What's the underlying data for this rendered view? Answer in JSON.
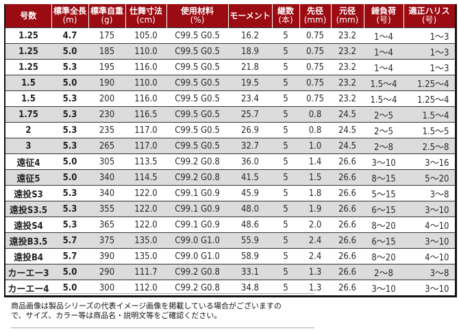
{
  "table": {
    "headers": [
      {
        "label": "号数",
        "sub": ""
      },
      {
        "label": "標準全長",
        "sub": "(m)"
      },
      {
        "label": "標準自重",
        "sub": "(g)"
      },
      {
        "label": "仕舞寸法",
        "sub": "(cm)"
      },
      {
        "label": "使用材料",
        "sub": "(%)"
      },
      {
        "label": "モーメント",
        "sub": ""
      },
      {
        "label": "継数",
        "sub": "(本)"
      },
      {
        "label": "先径",
        "sub": "(mm)"
      },
      {
        "label": "元径",
        "sub": "(mm)"
      },
      {
        "label": "錘負荷",
        "sub": "(号)"
      },
      {
        "label": "適正ハリス",
        "sub": "(号)"
      }
    ],
    "rows": [
      [
        "1.25",
        "4.7",
        "175",
        "105.0",
        "C99.5 G0.5",
        "16.2",
        "5",
        "0.75",
        "23.2",
        "1〜4",
        "1〜3"
      ],
      [
        "1.25",
        "5.0",
        "185",
        "110.0",
        "C99.5 G0.5",
        "18.9",
        "5",
        "0.75",
        "23.2",
        "1〜4",
        "1〜3"
      ],
      [
        "1.25",
        "5.3",
        "195",
        "116.0",
        "C99.5 G0.5",
        "21.8",
        "5",
        "0.75",
        "23.2",
        "1〜4",
        "1〜3"
      ],
      [
        "1.5",
        "5.0",
        "190",
        "110.0",
        "C99.5 G0.5",
        "19.5",
        "5",
        "0.75",
        "23.2",
        "1.5〜4",
        "1.25〜4"
      ],
      [
        "1.5",
        "5.3",
        "200",
        "116.0",
        "C99.5 G0.5",
        "23.4",
        "5",
        "0.75",
        "23.2",
        "1.5〜4",
        "1.25〜4"
      ],
      [
        "1.75",
        "5.3",
        "230",
        "116.5",
        "C99.5 G0.5",
        "25.7",
        "5",
        "0.8",
        "24.5",
        "2〜5",
        "1.5〜4"
      ],
      [
        "2",
        "5.3",
        "235",
        "117.0",
        "C99.5 G0.5",
        "26.9",
        "5",
        "0.8",
        "24.5",
        "2〜5",
        "1.5〜5"
      ],
      [
        "3",
        "5.3",
        "265",
        "117.0",
        "C99.5 G0.5",
        "32.7",
        "5",
        "1.0",
        "24.5",
        "2〜8",
        "2.5〜8"
      ],
      [
        "遠征4",
        "5.0",
        "305",
        "113.5",
        "C99.2 G0.8",
        "36.0",
        "5",
        "1.4",
        "26.6",
        "3〜10",
        "3〜16"
      ],
      [
        "遠征5",
        "5.0",
        "340",
        "114.5",
        "C99.2 G0.8",
        "41.5",
        "5",
        "1.5",
        "26.6",
        "8〜15",
        "5〜20"
      ],
      [
        "遠投S3",
        "5.3",
        "340",
        "122.0",
        "C99.1 G0.9",
        "45.9",
        "5",
        "1.8",
        "26.6",
        "5〜15",
        "3〜8"
      ],
      [
        "遠投S3.5",
        "5.3",
        "355",
        "122.0",
        "C99.1 G0.9",
        "48.0",
        "5",
        "1.9",
        "26.6",
        "6〜15",
        "3〜10"
      ],
      [
        "遠投S4",
        "5.3",
        "365",
        "122.0",
        "C99.1 G0.9",
        "48.6",
        "5",
        "2.0",
        "26.6",
        "8〜20",
        "4〜10"
      ],
      [
        "遠投B3.5",
        "5.7",
        "375",
        "135.0",
        "C99.0 G1.0",
        "55.9",
        "5",
        "2.4",
        "26.6",
        "6〜15",
        "3〜10"
      ],
      [
        "遠投B4",
        "5.7",
        "390",
        "135.0",
        "C99.0 G1.0",
        "58.9",
        "5",
        "2.4",
        "26.6",
        "8〜20",
        "4〜10"
      ],
      [
        "カーエー3",
        "5.0",
        "290",
        "111.7",
        "C99.2 G0.8",
        "33.1",
        "5",
        "1.3",
        "26.6",
        "2〜8",
        "3〜8"
      ],
      [
        "カーエー4",
        "5.0",
        "300",
        "112.0",
        "C99.2 G0.8",
        "34.8",
        "5",
        "1.3",
        "26.6",
        "3〜10",
        "3〜10"
      ]
    ]
  },
  "colors": {
    "header_bg": "#9b0b12",
    "header_text": "#ffffff",
    "alt_row_bg": "#dcdcdc"
  },
  "note": {
    "line1": "商品画像は製品シリーズの代表イメージ画像を掲載している場合がございますの",
    "line2": "で、サイズ、カラー等は商品名・説明文等をご確認ください。"
  }
}
